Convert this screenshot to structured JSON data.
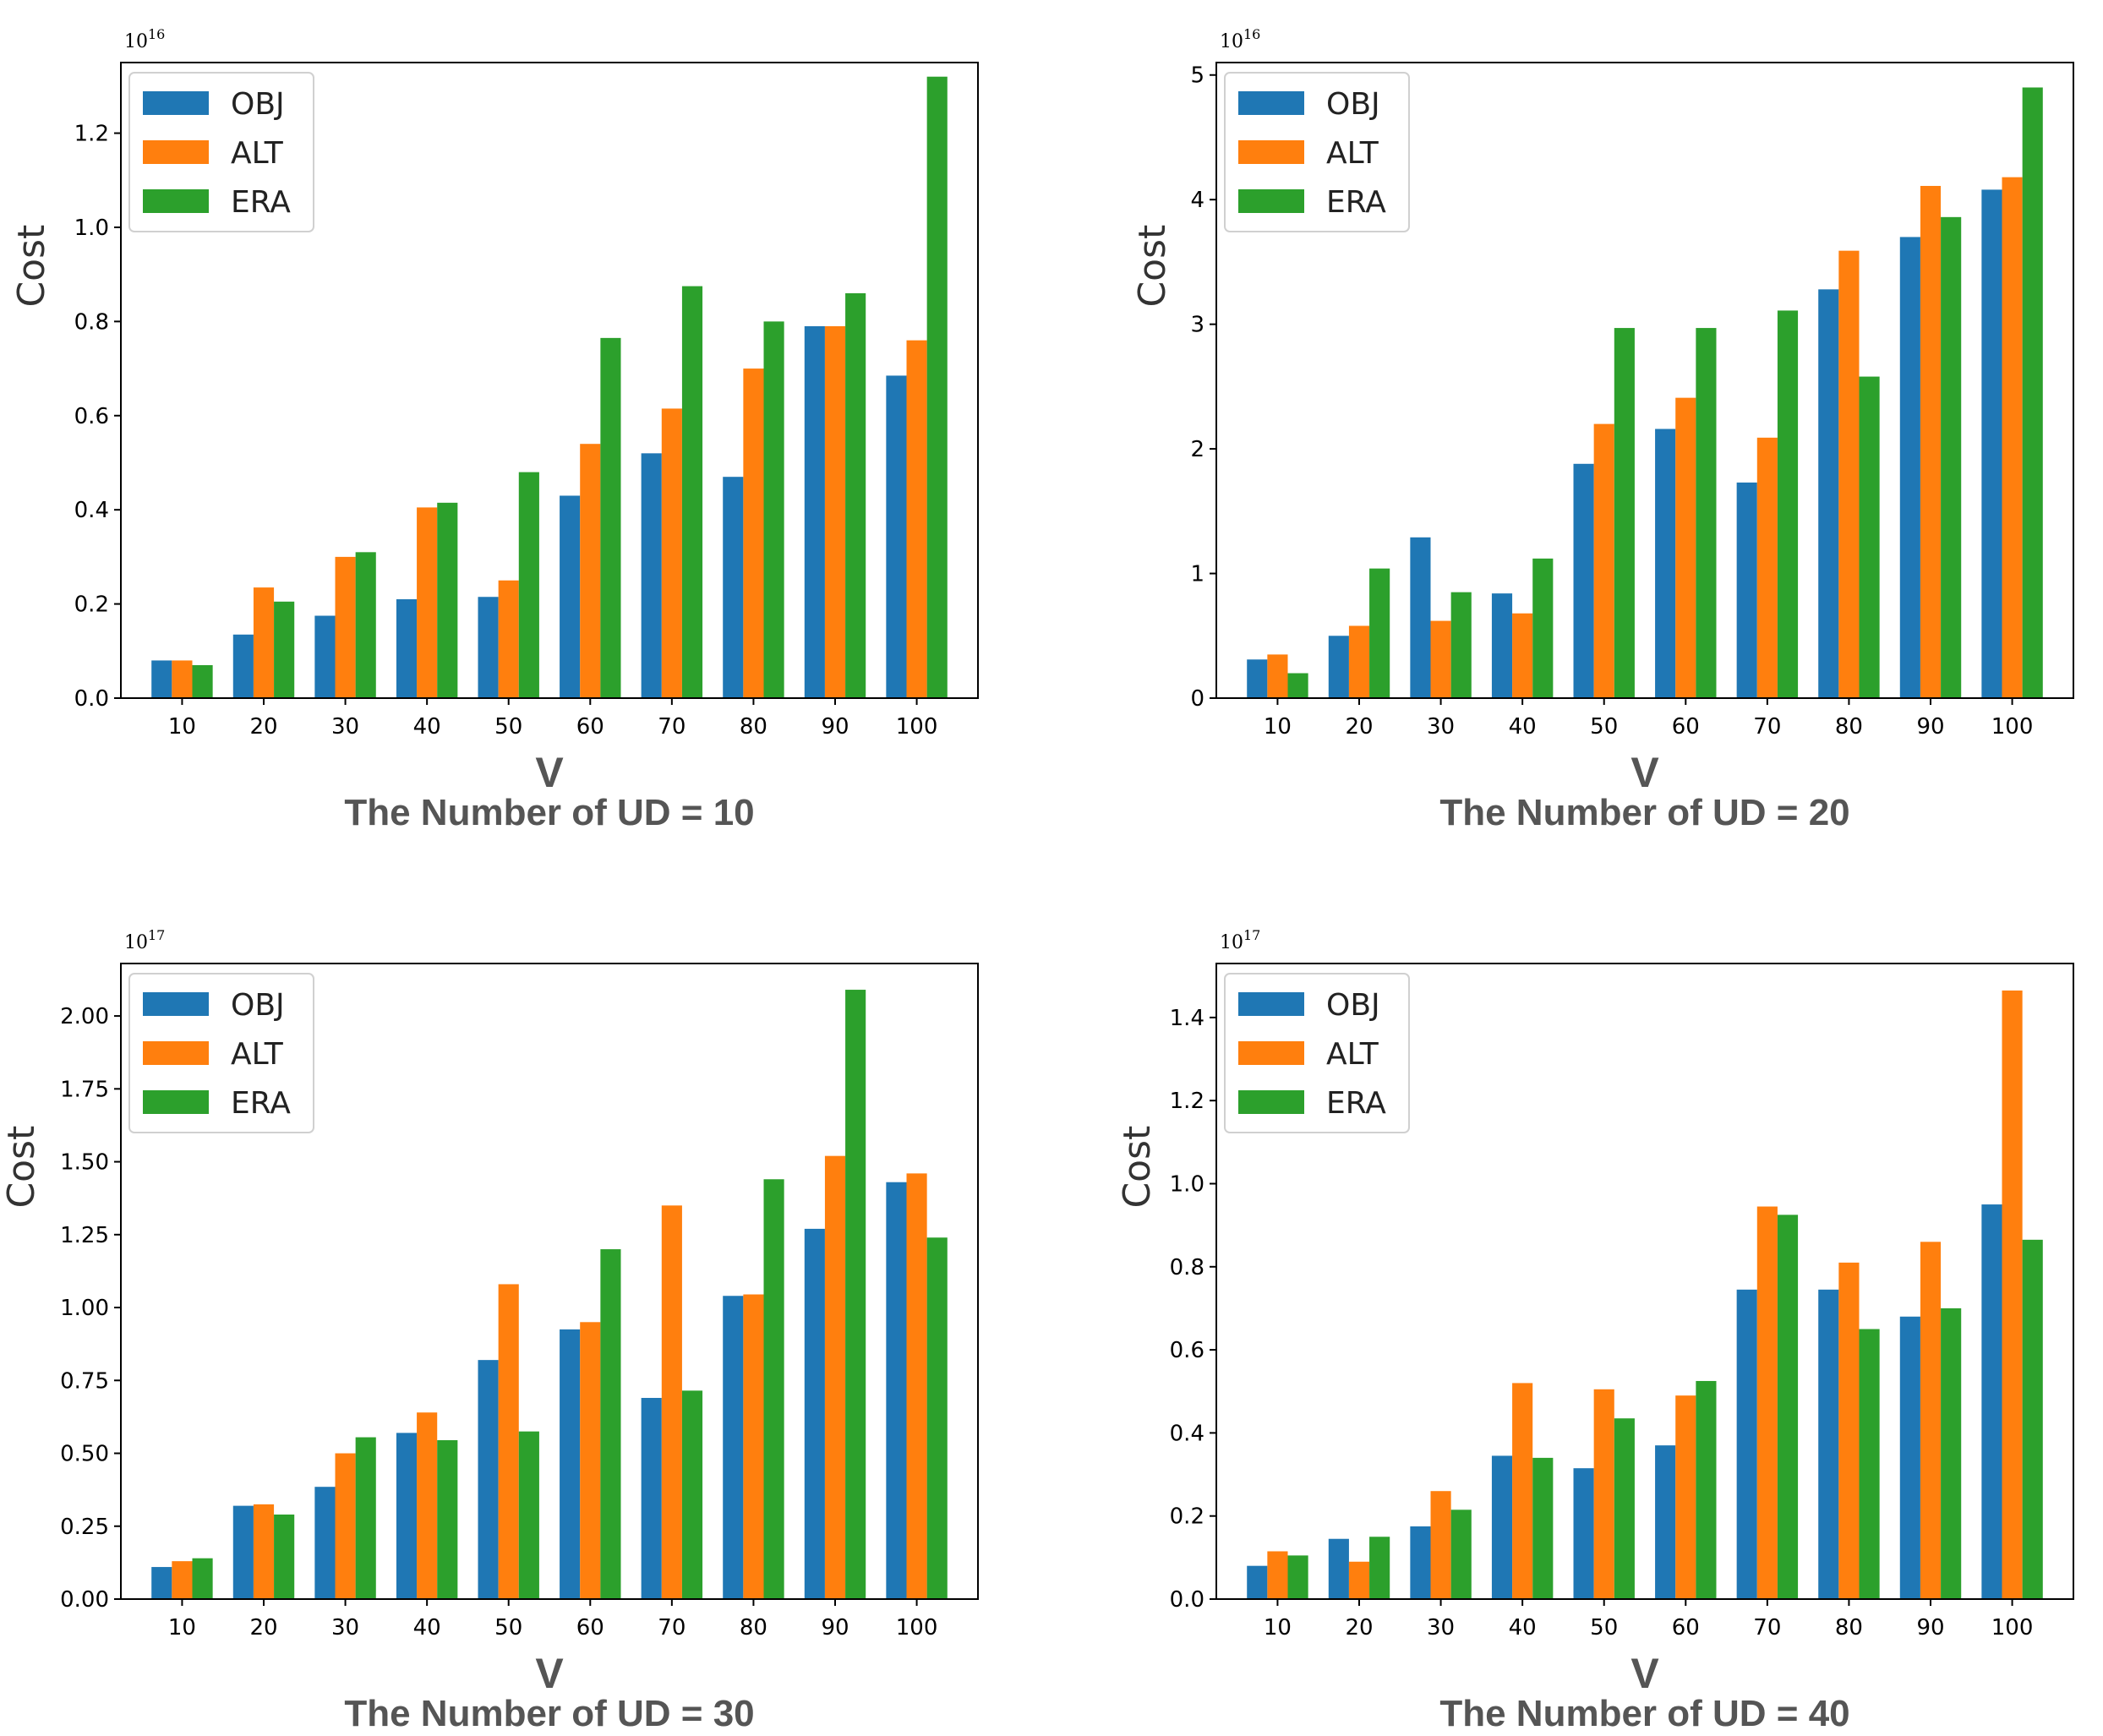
{
  "colors": {
    "OBJ": "#1f77b4",
    "ALT": "#ff7f0e",
    "ERA": "#2ca02c"
  },
  "chart_data": [
    {
      "type": "bar",
      "title": "The Number of UD = 10",
      "xlabel": "V",
      "ylabel": "Cost",
      "exponent_base": "10",
      "exponent_power": "16",
      "categories": [
        "10",
        "20",
        "30",
        "40",
        "50",
        "60",
        "70",
        "80",
        "90",
        "100"
      ],
      "ylim": [
        0,
        1.35
      ],
      "yticks": [
        "0.0",
        "0.2",
        "0.4",
        "0.6",
        "0.8",
        "1.0",
        "1.2"
      ],
      "ytick_values": [
        0,
        0.2,
        0.4,
        0.6,
        0.8,
        1.0,
        1.2
      ],
      "legend_position": "top-left",
      "series": [
        {
          "name": "OBJ",
          "values": [
            0.08,
            0.135,
            0.175,
            0.21,
            0.215,
            0.43,
            0.52,
            0.47,
            0.79,
            0.685
          ]
        },
        {
          "name": "ALT",
          "values": [
            0.08,
            0.235,
            0.3,
            0.405,
            0.25,
            0.54,
            0.615,
            0.7,
            0.79,
            0.76
          ]
        },
        {
          "name": "ERA",
          "values": [
            0.07,
            0.205,
            0.31,
            0.415,
            0.48,
            0.765,
            0.875,
            0.8,
            0.86,
            1.32
          ]
        }
      ]
    },
    {
      "type": "bar",
      "title": "The Number of UD = 20",
      "xlabel": "V",
      "ylabel": "Cost",
      "exponent_base": "10",
      "exponent_power": "16",
      "categories": [
        "10",
        "20",
        "30",
        "40",
        "50",
        "60",
        "70",
        "80",
        "90",
        "100"
      ],
      "ylim": [
        0,
        5.1
      ],
      "yticks": [
        "0",
        "1",
        "2",
        "3",
        "4",
        "5"
      ],
      "ytick_values": [
        0,
        1,
        2,
        3,
        4,
        5
      ],
      "legend_position": "top-left",
      "series": [
        {
          "name": "OBJ",
          "values": [
            0.31,
            0.5,
            1.29,
            0.84,
            1.88,
            2.16,
            1.73,
            3.28,
            3.7,
            4.08
          ]
        },
        {
          "name": "ALT",
          "values": [
            0.35,
            0.58,
            0.62,
            0.68,
            2.2,
            2.41,
            2.09,
            3.59,
            4.11,
            4.18
          ]
        },
        {
          "name": "ERA",
          "values": [
            0.2,
            1.04,
            0.85,
            1.12,
            2.97,
            2.97,
            3.11,
            2.58,
            3.86,
            4.9
          ]
        }
      ]
    },
    {
      "type": "bar",
      "title": "The Number of UD = 30",
      "xlabel": "V",
      "ylabel": "Cost",
      "exponent_base": "10",
      "exponent_power": "17",
      "categories": [
        "10",
        "20",
        "30",
        "40",
        "50",
        "60",
        "70",
        "80",
        "90",
        "100"
      ],
      "ylim": [
        0,
        2.18
      ],
      "yticks": [
        "0.00",
        "0.25",
        "0.50",
        "0.75",
        "1.00",
        "1.25",
        "1.50",
        "1.75",
        "2.00"
      ],
      "ytick_values": [
        0,
        0.25,
        0.5,
        0.75,
        1.0,
        1.25,
        1.5,
        1.75,
        2.0
      ],
      "legend_position": "top-left",
      "series": [
        {
          "name": "OBJ",
          "values": [
            0.11,
            0.32,
            0.385,
            0.57,
            0.82,
            0.925,
            0.69,
            1.04,
            1.27,
            1.43
          ]
        },
        {
          "name": "ALT",
          "values": [
            0.13,
            0.325,
            0.5,
            0.64,
            1.08,
            0.95,
            1.35,
            1.045,
            1.52,
            1.46
          ]
        },
        {
          "name": "ERA",
          "values": [
            0.14,
            0.29,
            0.555,
            0.545,
            0.575,
            1.2,
            0.715,
            1.44,
            2.09,
            1.24
          ]
        }
      ]
    },
    {
      "type": "bar",
      "title": "The Number of UD = 40",
      "xlabel": "V",
      "ylabel": "Cost",
      "exponent_base": "10",
      "exponent_power": "17",
      "categories": [
        "10",
        "20",
        "30",
        "40",
        "50",
        "60",
        "70",
        "80",
        "90",
        "100"
      ],
      "ylim": [
        0,
        1.53
      ],
      "yticks": [
        "0.0",
        "0.2",
        "0.4",
        "0.6",
        "0.8",
        "1.0",
        "1.2",
        "1.4"
      ],
      "ytick_values": [
        0,
        0.2,
        0.4,
        0.6,
        0.8,
        1.0,
        1.2,
        1.4
      ],
      "legend_position": "top-left",
      "series": [
        {
          "name": "OBJ",
          "values": [
            0.08,
            0.145,
            0.175,
            0.345,
            0.315,
            0.37,
            0.745,
            0.745,
            0.68,
            0.95
          ]
        },
        {
          "name": "ALT",
          "values": [
            0.115,
            0.09,
            0.26,
            0.52,
            0.505,
            0.49,
            0.945,
            0.81,
            0.86,
            1.465
          ]
        },
        {
          "name": "ERA",
          "values": [
            0.105,
            0.15,
            0.215,
            0.34,
            0.435,
            0.525,
            0.925,
            0.65,
            0.7,
            0.865
          ]
        }
      ]
    }
  ]
}
